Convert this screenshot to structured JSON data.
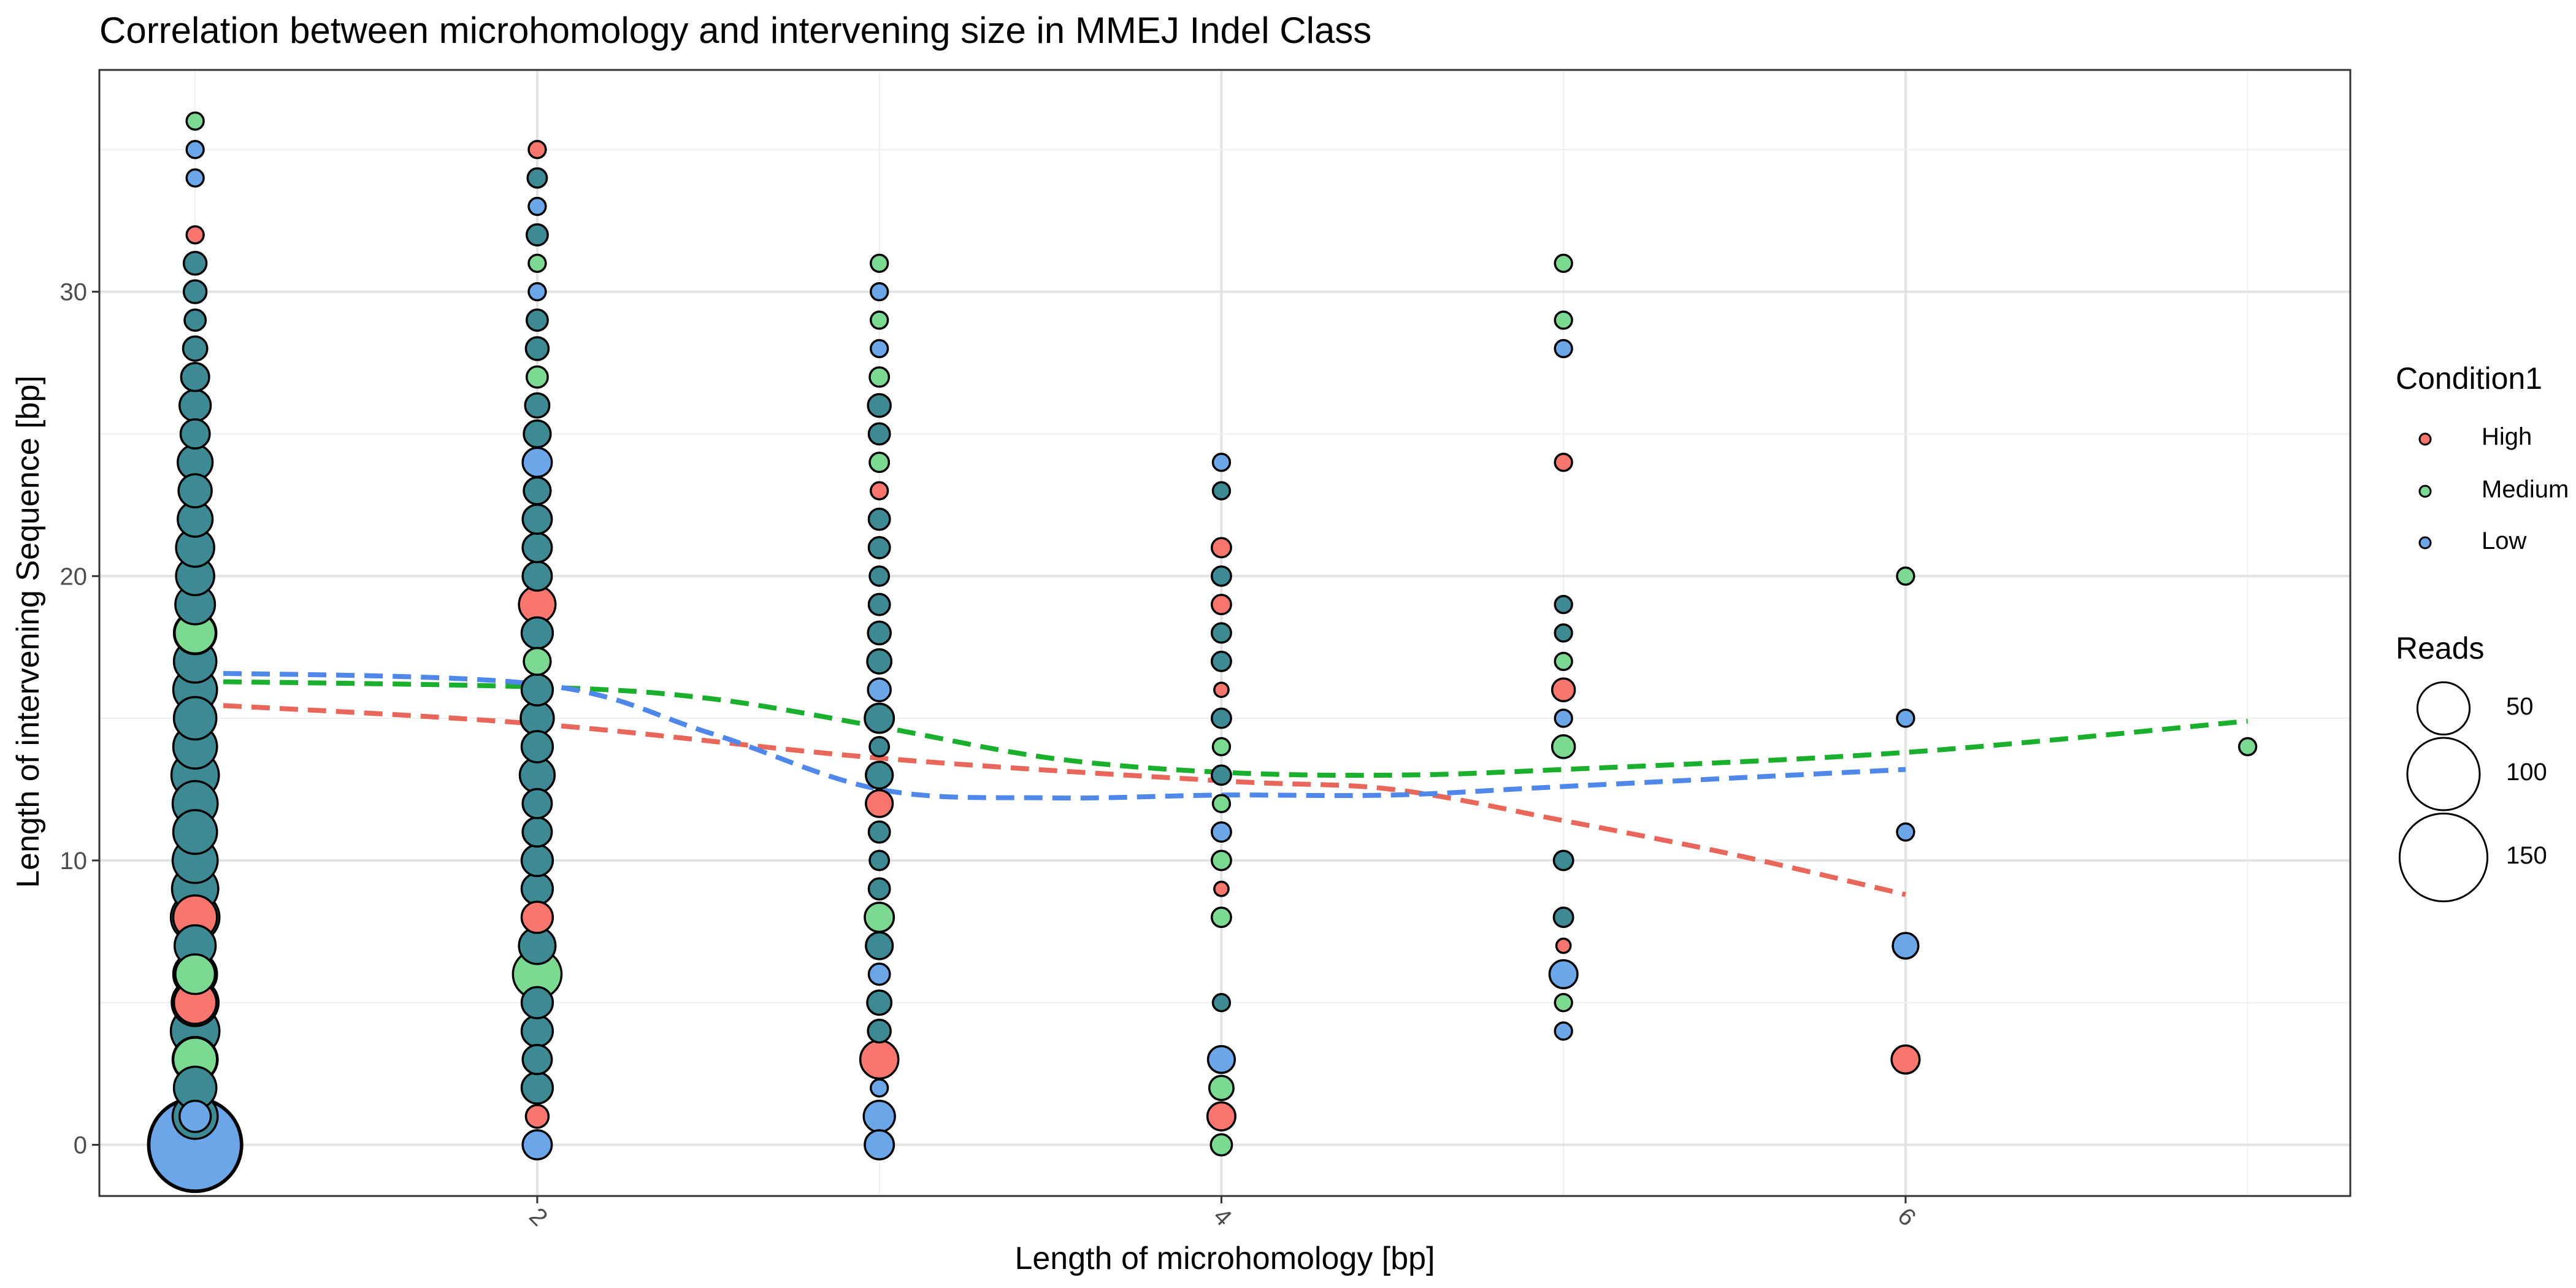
{
  "chart_data": {
    "type": "scatter",
    "title": "Correlation between microhomology and intervening size in MMEJ Indel Class",
    "xlabel": "Length of microhomology [bp]",
    "ylabel": "Length of intervening Sequence [bp]",
    "xlim": [
      0.72,
      7.3
    ],
    "ylim": [
      -1.8,
      37.8
    ],
    "x_ticks": [
      2,
      4,
      6
    ],
    "x_tick_labels": [
      "2",
      "4",
      "6"
    ],
    "y_ticks": [
      0,
      10,
      20,
      30
    ],
    "y_tick_labels": [
      "0",
      "10",
      "20",
      "30"
    ],
    "grid": true,
    "legend_position": "right",
    "colors": {
      "High": "#f8766d",
      "Medium": "#7cd992",
      "Low": "#6ba6e8",
      "Mixed": "#3d8a94"
    },
    "line_colors": {
      "High": "#e8665a",
      "Medium": "#1aaf2c",
      "Low": "#4f88ea"
    },
    "legend_color": {
      "title": "Condition1",
      "entries": [
        {
          "label": "High",
          "color": "#f8766d"
        },
        {
          "label": "Medium",
          "color": "#7cd992"
        },
        {
          "label": "Low",
          "color": "#6ba6e8"
        }
      ]
    },
    "legend_size": {
      "title": "Reads",
      "entries": [
        {
          "label": "50",
          "reads": 50
        },
        {
          "label": "100",
          "reads": 100
        },
        {
          "label": "150",
          "reads": 150
        }
      ]
    },
    "point_series": [
      {
        "x": 1,
        "color": "Mixed",
        "reads": [
          [
            0,
            160
          ],
          [
            1,
            30
          ],
          [
            2,
            26
          ],
          [
            3,
            30
          ],
          [
            4,
            36
          ],
          [
            5,
            33
          ],
          [
            6,
            28
          ],
          [
            7,
            24
          ],
          [
            8,
            36
          ],
          [
            9,
            32
          ],
          [
            10,
            30
          ],
          [
            11,
            28
          ],
          [
            12,
            30
          ],
          [
            13,
            34
          ],
          [
            14,
            28
          ],
          [
            15,
            26
          ],
          [
            16,
            28
          ],
          [
            17,
            26
          ],
          [
            18,
            26
          ],
          [
            19,
            22
          ],
          [
            20,
            20
          ],
          [
            21,
            20
          ],
          [
            22,
            16
          ],
          [
            23,
            14
          ],
          [
            24,
            16
          ],
          [
            25,
            10
          ],
          [
            26,
            12
          ],
          [
            27,
            9
          ],
          [
            28,
            6
          ],
          [
            29,
            4
          ],
          [
            30,
            5
          ],
          [
            31,
            5
          ]
        ]
      },
      {
        "x": 1,
        "color": "High",
        "reads": [
          [
            5,
            26
          ],
          [
            8,
            28
          ],
          [
            32,
            2
          ]
        ]
      },
      {
        "x": 1,
        "color": "Medium",
        "reads": [
          [
            3,
            28
          ],
          [
            6,
            22
          ],
          [
            18,
            24
          ],
          [
            36,
            2
          ]
        ]
      },
      {
        "x": 1,
        "color": "Low",
        "reads": [
          [
            0,
            150
          ],
          [
            1,
            12
          ],
          [
            34,
            2
          ],
          [
            35,
            2
          ]
        ]
      },
      {
        "x": 2,
        "color": "Mixed",
        "reads": [
          [
            2,
            12
          ],
          [
            3,
            10
          ],
          [
            4,
            12
          ],
          [
            5,
            12
          ],
          [
            7,
            18
          ],
          [
            9,
            12
          ],
          [
            10,
            12
          ],
          [
            11,
            10
          ],
          [
            12,
            10
          ],
          [
            13,
            16
          ],
          [
            14,
            12
          ],
          [
            15,
            14
          ],
          [
            16,
            12
          ],
          [
            18,
            12
          ],
          [
            20,
            10
          ],
          [
            21,
            10
          ],
          [
            22,
            10
          ],
          [
            23,
            8
          ],
          [
            25,
            8
          ],
          [
            26,
            6
          ],
          [
            28,
            5
          ],
          [
            29,
            4
          ],
          [
            32,
            4
          ],
          [
            34,
            3
          ]
        ]
      },
      {
        "x": 2,
        "color": "High",
        "reads": [
          [
            1,
            5
          ],
          [
            8,
            12
          ],
          [
            19,
            18
          ],
          [
            35,
            2
          ]
        ]
      },
      {
        "x": 2,
        "color": "Medium",
        "reads": [
          [
            6,
            36
          ],
          [
            17,
            8
          ],
          [
            27,
            4
          ],
          [
            31,
            2
          ]
        ]
      },
      {
        "x": 2,
        "color": "Low",
        "reads": [
          [
            0,
            10
          ],
          [
            24,
            10
          ],
          [
            30,
            2
          ],
          [
            33,
            2
          ]
        ]
      },
      {
        "x": 3,
        "color": "Mixed",
        "reads": [
          [
            4,
            5
          ],
          [
            5,
            6
          ],
          [
            7,
            8
          ],
          [
            9,
            4
          ],
          [
            10,
            3
          ],
          [
            11,
            4
          ],
          [
            13,
            8
          ],
          [
            14,
            3
          ],
          [
            15,
            10
          ],
          [
            17,
            6
          ],
          [
            18,
            5
          ],
          [
            19,
            4
          ],
          [
            20,
            3
          ],
          [
            21,
            4
          ],
          [
            22,
            4
          ],
          [
            25,
            4
          ],
          [
            26,
            5
          ]
        ]
      },
      {
        "x": 3,
        "color": "High",
        "reads": [
          [
            3,
            20
          ],
          [
            12,
            8
          ],
          [
            23,
            2
          ]
        ]
      },
      {
        "x": 3,
        "color": "Medium",
        "reads": [
          [
            8,
            10
          ],
          [
            24,
            3
          ],
          [
            27,
            3
          ],
          [
            29,
            2
          ],
          [
            31,
            2
          ]
        ]
      },
      {
        "x": 3,
        "color": "Low",
        "reads": [
          [
            0,
            10
          ],
          [
            1,
            12
          ],
          [
            2,
            2
          ],
          [
            6,
            4
          ],
          [
            16,
            5
          ],
          [
            28,
            2
          ],
          [
            30,
            2
          ]
        ]
      },
      {
        "x": 4,
        "color": "Mixed",
        "reads": [
          [
            5,
            2
          ],
          [
            13,
            3
          ],
          [
            15,
            3
          ],
          [
            17,
            3
          ],
          [
            18,
            3
          ],
          [
            20,
            3
          ],
          [
            23,
            2
          ]
        ]
      },
      {
        "x": 4,
        "color": "High",
        "reads": [
          [
            1,
            9
          ],
          [
            9,
            1
          ],
          [
            16,
            1
          ],
          [
            19,
            3
          ],
          [
            21,
            3
          ]
        ]
      },
      {
        "x": 4,
        "color": "Medium",
        "reads": [
          [
            0,
            4
          ],
          [
            2,
            6
          ],
          [
            8,
            3
          ],
          [
            10,
            3
          ],
          [
            12,
            2
          ],
          [
            14,
            2
          ]
        ]
      },
      {
        "x": 4,
        "color": "Low",
        "reads": [
          [
            3,
            8
          ],
          [
            11,
            3
          ],
          [
            24,
            2
          ]
        ]
      },
      {
        "x": 5,
        "color": "Mixed",
        "reads": [
          [
            8,
            3
          ],
          [
            10,
            3
          ],
          [
            18,
            2
          ],
          [
            19,
            2
          ]
        ]
      },
      {
        "x": 5,
        "color": "High",
        "reads": [
          [
            7,
            1
          ],
          [
            16,
            5
          ],
          [
            24,
            2
          ]
        ]
      },
      {
        "x": 5,
        "color": "Medium",
        "reads": [
          [
            5,
            2
          ],
          [
            14,
            5
          ],
          [
            17,
            2
          ],
          [
            29,
            2
          ],
          [
            31,
            2
          ]
        ]
      },
      {
        "x": 5,
        "color": "Low",
        "reads": [
          [
            4,
            2
          ],
          [
            6,
            9
          ],
          [
            15,
            2
          ],
          [
            28,
            2
          ]
        ]
      },
      {
        "x": 6,
        "color": "High",
        "reads": [
          [
            3,
            9
          ]
        ]
      },
      {
        "x": 6,
        "color": "Medium",
        "reads": [
          [
            20,
            2
          ]
        ]
      },
      {
        "x": 6,
        "color": "Low",
        "reads": [
          [
            7,
            7
          ],
          [
            11,
            2
          ],
          [
            15,
            2
          ]
        ]
      },
      {
        "x": 7,
        "color": "Medium",
        "reads": [
          [
            14,
            2
          ]
        ]
      }
    ],
    "trend_lines": [
      {
        "name": "High",
        "points": [
          [
            1,
            15.5
          ],
          [
            2,
            14.8
          ],
          [
            3,
            13.6
          ],
          [
            4,
            12.8
          ],
          [
            4.5,
            12.5
          ],
          [
            5,
            11.4
          ],
          [
            5.5,
            10.2
          ],
          [
            6,
            8.8
          ]
        ]
      },
      {
        "name": "Medium",
        "points": [
          [
            1,
            16.3
          ],
          [
            2,
            16.1
          ],
          [
            2.5,
            15.7
          ],
          [
            3,
            14.7
          ],
          [
            3.5,
            13.6
          ],
          [
            4,
            13.1
          ],
          [
            4.5,
            13.0
          ],
          [
            5,
            13.2
          ],
          [
            6,
            13.8
          ],
          [
            7,
            14.9
          ]
        ]
      },
      {
        "name": "Low",
        "points": [
          [
            1,
            16.6
          ],
          [
            2,
            16.2
          ],
          [
            2.5,
            14.5
          ],
          [
            3,
            12.5
          ],
          [
            3.5,
            12.2
          ],
          [
            4,
            12.3
          ],
          [
            4.5,
            12.3
          ],
          [
            5,
            12.6
          ],
          [
            6,
            13.2
          ]
        ]
      }
    ]
  }
}
